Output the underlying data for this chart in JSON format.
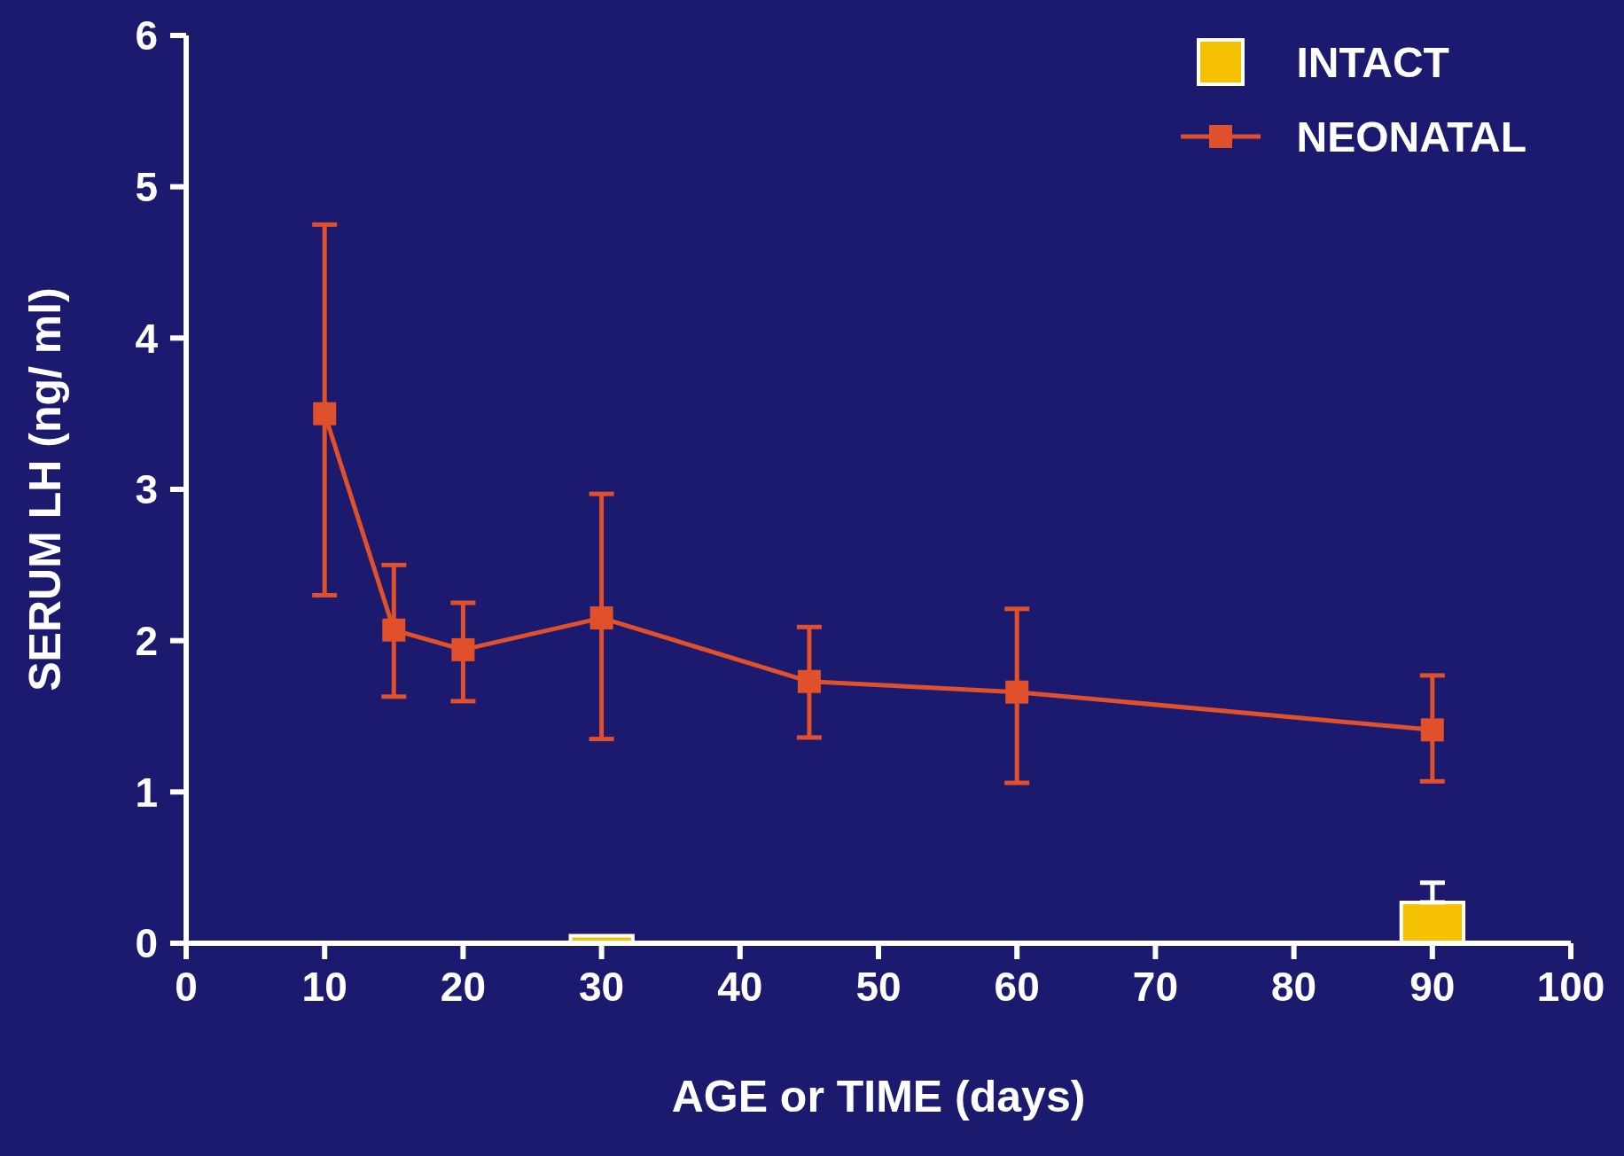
{
  "chart_data": {
    "type": "line",
    "xlabel": "AGE or TIME (days)",
    "ylabel": "SERUM LH (ng/ ml)",
    "series": [
      {
        "name": "INTACT",
        "type": "bar",
        "color": "#f5c000",
        "x": [
          30,
          90
        ],
        "values": [
          0.05,
          0.27
        ],
        "errors": [
          null,
          [
            0.27,
            0.4
          ]
        ]
      },
      {
        "name": "NEONATAL",
        "color": "#e0502a",
        "x": [
          10,
          15,
          20,
          30,
          45,
          60,
          90
        ],
        "values": [
          3.5,
          2.07,
          1.94,
          2.15,
          1.73,
          1.66,
          1.41
        ],
        "errors": [
          [
            2.3,
            4.75
          ],
          [
            1.63,
            2.5
          ],
          [
            1.6,
            2.25
          ],
          [
            1.35,
            2.97
          ],
          [
            1.36,
            2.09
          ],
          [
            1.06,
            2.21
          ],
          [
            1.07,
            1.77
          ]
        ]
      }
    ],
    "xlim": [
      0,
      100
    ],
    "xticks": [
      0,
      10,
      20,
      30,
      40,
      50,
      60,
      70,
      80,
      90,
      100
    ],
    "ylim": [
      0,
      6
    ],
    "yticks": [
      0,
      1,
      2,
      3,
      4,
      5,
      6
    ],
    "marker": "square",
    "grid": false,
    "legend": "top right"
  }
}
